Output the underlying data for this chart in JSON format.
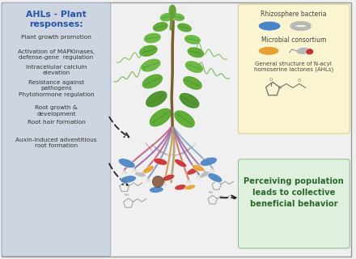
{
  "bg_color": "#f0f0f0",
  "left_panel_color": "#cdd5e0",
  "left_panel_title": "AHLs - Plant\nresponses:",
  "left_panel_title_color": "#2255aa",
  "left_panel_items": [
    "Plant growth promotion",
    "Activation of MAPKinases,\ndefense-gene  regulation",
    "Intracellular calcium\nelevation",
    "Resistance against\npathogens",
    "Phytohormone regulation",
    "Root growth &\ndevelopment",
    "Root hair formation",
    "Auxin-induced adventitious\nroot formation"
  ],
  "left_text_color": "#333333",
  "right_top_panel_color": "#faf5d0",
  "right_top_title1": "Rhizosphere bacteria",
  "right_top_title2": "Microbial consortium",
  "right_top_title3": "General structure of N-acyl\nhomoserine lactones (AHLs)",
  "right_bottom_panel_color": "#dff0df",
  "right_bottom_text": "Perceiving population\nleads to collective\nbeneficial behavior",
  "right_bottom_text_color": "#2a6a2a",
  "bacteria_blue": "#4a85c4",
  "bacteria_gray": "#b8b8b8",
  "bacteria_orange": "#e8a030",
  "bacteria_red": "#c83030",
  "arrow_color": "#222222",
  "stem_color": "#6a9a3a",
  "leaf_color1": "#5aaa30",
  "leaf_color2": "#4a9028",
  "leaf_color3": "#68b840",
  "root_colors": [
    "#c05878",
    "#9060a8",
    "#7890c8",
    "#c89040",
    "#d06858",
    "#a06898",
    "#80a8c0"
  ],
  "brown_sphere": "#8B6044"
}
